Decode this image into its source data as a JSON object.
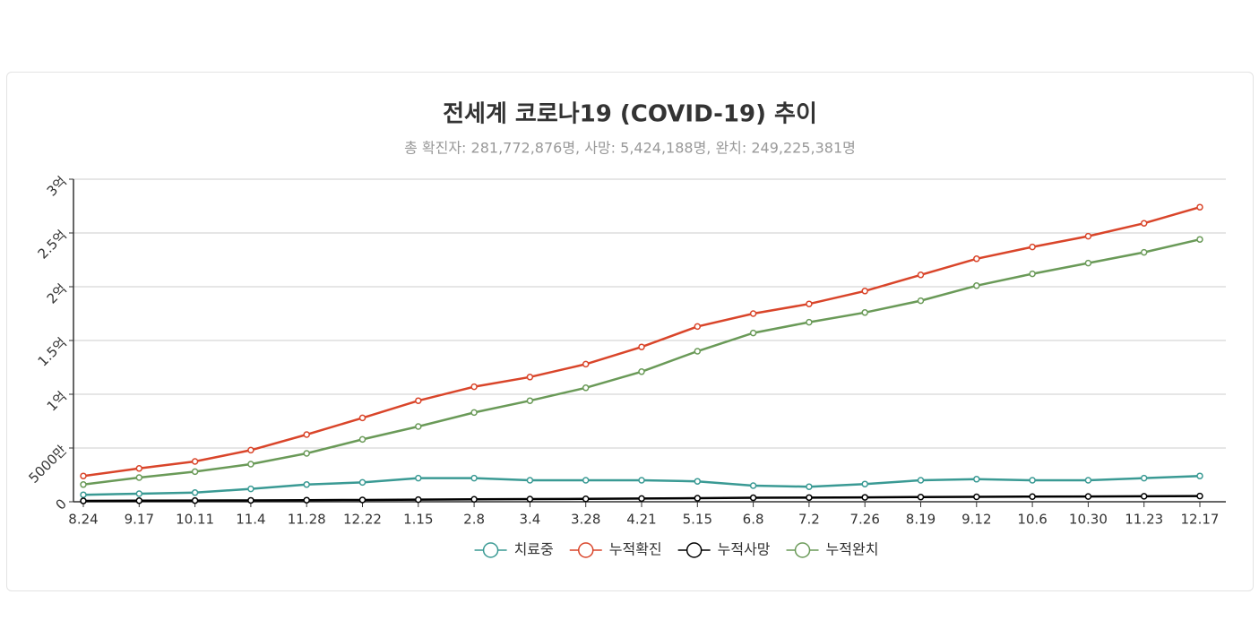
{
  "chart_data": {
    "type": "line",
    "title": "전세계 코로나19 (COVID-19) 추이",
    "subtitle": "총 확진자: 281,772,876명, 사망: 5,424,188명, 완치: 249,225,381명",
    "categories": [
      "8.24",
      "9.17",
      "10.11",
      "11.4",
      "11.28",
      "12.22",
      "1.15",
      "2.8",
      "3.4",
      "3.28",
      "4.21",
      "5.15",
      "6.8",
      "7.2",
      "7.26",
      "8.19",
      "9.12",
      "10.6",
      "10.30",
      "11.23",
      "12.17"
    ],
    "series": [
      {
        "name": "치료중",
        "color": "#3a9a94",
        "values": [
          6500000,
          7500000,
          8500000,
          12000000,
          16000000,
          18000000,
          22000000,
          22000000,
          20000000,
          20000000,
          20000000,
          19000000,
          15000000,
          14000000,
          16500000,
          20000000,
          21000000,
          20000000,
          20000000,
          22000000,
          24000000
        ]
      },
      {
        "name": "누적확진",
        "color": "#d9452a",
        "values": [
          24000000,
          31000000,
          37500000,
          48000000,
          62500000,
          78000000,
          94000000,
          107000000,
          116000000,
          128000000,
          144000000,
          163000000,
          175000000,
          184000000,
          196000000,
          211000000,
          226000000,
          237000000,
          247000000,
          259000000,
          274000000
        ]
      },
      {
        "name": "누적사망",
        "color": "#000000",
        "values": [
          800000,
          1000000,
          1100000,
          1300000,
          1500000,
          1700000,
          2000000,
          2300000,
          2500000,
          2700000,
          3000000,
          3300000,
          3700000,
          3900000,
          4100000,
          4400000,
          4600000,
          4800000,
          4900000,
          5100000,
          5300000
        ]
      },
      {
        "name": "누적완치",
        "color": "#6a9a58",
        "values": [
          16000000,
          22500000,
          28000000,
          35000000,
          45000000,
          58000000,
          70000000,
          83000000,
          94000000,
          106000000,
          121000000,
          140000000,
          157000000,
          167000000,
          176000000,
          187000000,
          201000000,
          212000000,
          222000000,
          232000000,
          244000000
        ]
      }
    ],
    "ylim": [
      0,
      300000000
    ],
    "yticks": [
      0,
      {
        "value": 50000000,
        "label": "5000만"
      },
      {
        "value": 100000000,
        "label": "1억"
      },
      {
        "value": 150000000,
        "label": "1.5억"
      },
      {
        "value": 200000000,
        "label": "2억"
      },
      {
        "value": 250000000,
        "label": "2.5억"
      },
      {
        "value": 300000000,
        "label": "3억"
      }
    ],
    "grid": true,
    "legend": "bottom"
  }
}
